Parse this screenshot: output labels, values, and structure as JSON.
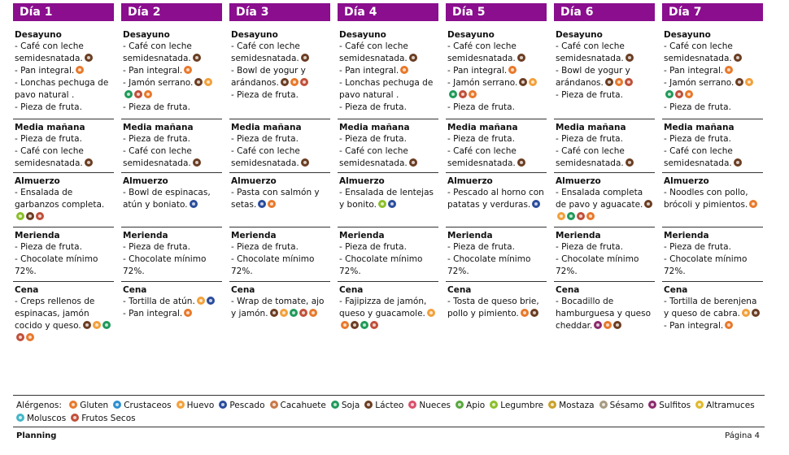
{
  "allergen_colors": {
    "gluten": "#e8792b",
    "crustaceos": "#2c8fd0",
    "huevo": "#f2a03b",
    "pescado": "#2a4c9b",
    "cacahuete": "#c8784a",
    "soja": "#1f9a5a",
    "lacteo": "#6b3d22",
    "nueces": "#d9506b",
    "apio": "#58a83d",
    "legumbre": "#8cbf2a",
    "mostaza": "#c9a02a",
    "sesamo": "#a69a80",
    "sulfitos": "#8c2a6d",
    "altramuces": "#e0b92c",
    "moluscos": "#43b6c8",
    "frutos_secos": "#c0503a"
  },
  "days": [
    {
      "label": "Día 1",
      "meals": [
        {
          "title": "Desayuno",
          "items": [
            {
              "text": "- Café con leche semidesnatada.",
              "allergens": [
                "lacteo"
              ]
            },
            {
              "text": "- Pan integral.",
              "allergens": [
                "gluten"
              ]
            },
            {
              "text": "- Lonchas pechuga de pavo natural .",
              "allergens": []
            },
            {
              "text": "- Pieza de fruta.",
              "allergens": []
            }
          ]
        },
        {
          "title": "Media mañana",
          "items": [
            {
              "text": "- Pieza de fruta.",
              "allergens": []
            },
            {
              "text": "- Café con leche semidesnatada.",
              "allergens": [
                "lacteo"
              ]
            }
          ]
        },
        {
          "title": "Almuerzo",
          "items": [
            {
              "text": "- Ensalada de garbanzos completa.",
              "allergens": [
                "legumbre",
                "lacteo",
                "frutos_secos"
              ]
            }
          ]
        },
        {
          "title": "Merienda",
          "items": [
            {
              "text": "- Pieza de fruta.",
              "allergens": []
            },
            {
              "text": "- Chocolate mínimo 72%.",
              "allergens": []
            }
          ]
        },
        {
          "title": "Cena",
          "items": [
            {
              "text": "- Creps rellenos de espinacas, jamón cocido y queso.",
              "allergens": [
                "lacteo",
                "huevo",
                "soja",
                "frutos_secos",
                "gluten"
              ]
            }
          ]
        }
      ]
    },
    {
      "label": "Día 2",
      "meals": [
        {
          "title": "Desayuno",
          "items": [
            {
              "text": "- Café con leche semidesnatada.",
              "allergens": [
                "lacteo"
              ]
            },
            {
              "text": "- Pan integral.",
              "allergens": [
                "gluten"
              ]
            },
            {
              "text": "- Jamón serrano.",
              "allergens": [
                "lacteo",
                "huevo",
                "soja",
                "frutos_secos",
                "gluten"
              ]
            },
            {
              "text": "- Pieza de fruta.",
              "allergens": []
            }
          ]
        },
        {
          "title": "Media mañana",
          "items": [
            {
              "text": "- Pieza de fruta.",
              "allergens": []
            },
            {
              "text": "- Café con leche semidesnatada.",
              "allergens": [
                "lacteo"
              ]
            }
          ]
        },
        {
          "title": "Almuerzo",
          "items": [
            {
              "text": "- Bowl de espinacas, atún y boniato.",
              "allergens": [
                "pescado"
              ]
            }
          ]
        },
        {
          "title": "Merienda",
          "items": [
            {
              "text": "- Pieza de fruta.",
              "allergens": []
            },
            {
              "text": "- Chocolate mínimo 72%.",
              "allergens": []
            }
          ]
        },
        {
          "title": "Cena",
          "items": [
            {
              "text": "- Tortilla de atún.",
              "allergens": [
                "huevo",
                "pescado"
              ]
            },
            {
              "text": "- Pan integral.",
              "allergens": [
                "gluten"
              ]
            }
          ]
        }
      ]
    },
    {
      "label": "Día 3",
      "meals": [
        {
          "title": "Desayuno",
          "items": [
            {
              "text": "- Café con leche semidesnatada.",
              "allergens": [
                "lacteo"
              ]
            },
            {
              "text": "- Bowl de yogur y arándanos.",
              "allergens": [
                "lacteo",
                "gluten",
                "frutos_secos"
              ]
            },
            {
              "text": "- Pieza de fruta.",
              "allergens": []
            }
          ]
        },
        {
          "title": "Media mañana",
          "items": [
            {
              "text": "- Pieza de fruta.",
              "allergens": []
            },
            {
              "text": "- Café con leche semidesnatada.",
              "allergens": [
                "lacteo"
              ]
            }
          ]
        },
        {
          "title": "Almuerzo",
          "items": [
            {
              "text": "- Pasta con salmón y setas.",
              "allergens": [
                "pescado",
                "gluten"
              ]
            }
          ]
        },
        {
          "title": "Merienda",
          "items": [
            {
              "text": "- Pieza de fruta.",
              "allergens": []
            },
            {
              "text": "- Chocolate mínimo 72%.",
              "allergens": []
            }
          ]
        },
        {
          "title": "Cena",
          "items": [
            {
              "text": "- Wrap de tomate, ajo y jamón.",
              "allergens": [
                "lacteo",
                "huevo",
                "soja",
                "frutos_secos",
                "gluten"
              ]
            }
          ]
        }
      ]
    },
    {
      "label": "Día 4",
      "meals": [
        {
          "title": "Desayuno",
          "items": [
            {
              "text": "- Café con leche semidesnatada.",
              "allergens": [
                "lacteo"
              ]
            },
            {
              "text": "- Pan integral.",
              "allergens": [
                "gluten"
              ]
            },
            {
              "text": "- Lonchas pechuga de pavo natural .",
              "allergens": []
            },
            {
              "text": "- Pieza de fruta.",
              "allergens": []
            }
          ]
        },
        {
          "title": "Media mañana",
          "items": [
            {
              "text": "- Pieza de fruta.",
              "allergens": []
            },
            {
              "text": "- Café con leche semidesnatada.",
              "allergens": [
                "lacteo"
              ]
            }
          ]
        },
        {
          "title": "Almuerzo",
          "items": [
            {
              "text": "- Ensalada de lentejas y bonito.",
              "allergens": [
                "legumbre",
                "pescado"
              ]
            }
          ]
        },
        {
          "title": "Merienda",
          "items": [
            {
              "text": "- Pieza de fruta.",
              "allergens": []
            },
            {
              "text": "- Chocolate mínimo 72%.",
              "allergens": []
            }
          ]
        },
        {
          "title": "Cena",
          "items": [
            {
              "text": "- Fajipizza de jamón, queso y guacamole.",
              "allergens": [
                "huevo",
                "gluten",
                "lacteo",
                "soja",
                "frutos_secos"
              ]
            }
          ]
        }
      ]
    },
    {
      "label": "Día 5",
      "meals": [
        {
          "title": "Desayuno",
          "items": [
            {
              "text": "- Café con leche semidesnatada.",
              "allergens": [
                "lacteo"
              ]
            },
            {
              "text": "- Pan integral.",
              "allergens": [
                "gluten"
              ]
            },
            {
              "text": "- Jamón serrano.",
              "allergens": [
                "lacteo",
                "huevo",
                "soja",
                "frutos_secos",
                "gluten"
              ]
            },
            {
              "text": "- Pieza de fruta.",
              "allergens": []
            }
          ]
        },
        {
          "title": "Media mañana",
          "items": [
            {
              "text": "- Pieza de fruta.",
              "allergens": []
            },
            {
              "text": "- Café con leche semidesnatada.",
              "allergens": [
                "lacteo"
              ]
            }
          ]
        },
        {
          "title": "Almuerzo",
          "items": [
            {
              "text": "- Pescado al horno con patatas y verduras.",
              "allergens": [
                "pescado"
              ]
            }
          ]
        },
        {
          "title": "Merienda",
          "items": [
            {
              "text": "- Pieza de fruta.",
              "allergens": []
            },
            {
              "text": "- Chocolate mínimo 72%.",
              "allergens": []
            }
          ]
        },
        {
          "title": "Cena",
          "items": [
            {
              "text": "- Tosta de queso brie, pollo y pimiento.",
              "allergens": [
                "gluten",
                "lacteo"
              ]
            }
          ]
        }
      ]
    },
    {
      "label": "Día 6",
      "meals": [
        {
          "title": "Desayuno",
          "items": [
            {
              "text": "- Café con leche semidesnatada.",
              "allergens": [
                "lacteo"
              ]
            },
            {
              "text": "- Bowl de yogur y arándanos.",
              "allergens": [
                "lacteo",
                "gluten",
                "frutos_secos"
              ]
            },
            {
              "text": "- Pieza de fruta.",
              "allergens": []
            }
          ]
        },
        {
          "title": "Media mañana",
          "items": [
            {
              "text": "- Pieza de fruta.",
              "allergens": []
            },
            {
              "text": "- Café con leche semidesnatada.",
              "allergens": [
                "lacteo"
              ]
            }
          ]
        },
        {
          "title": "Almuerzo",
          "items": [
            {
              "text": "- Ensalada completa de pavo y aguacate.",
              "allergens": [
                "lacteo",
                "huevo",
                "soja",
                "frutos_secos",
                "gluten"
              ]
            }
          ]
        },
        {
          "title": "Merienda",
          "items": [
            {
              "text": "- Pieza de fruta.",
              "allergens": []
            },
            {
              "text": "- Chocolate mínimo 72%.",
              "allergens": []
            }
          ]
        },
        {
          "title": "Cena",
          "items": [
            {
              "text": "- Bocadillo de hamburguesa y queso cheddar.",
              "allergens": [
                "sulfitos",
                "gluten",
                "lacteo"
              ]
            }
          ]
        }
      ]
    },
    {
      "label": "Día 7",
      "meals": [
        {
          "title": "Desayuno",
          "items": [
            {
              "text": "- Café con leche semidesnatada.",
              "allergens": [
                "lacteo"
              ]
            },
            {
              "text": "- Pan integral.",
              "allergens": [
                "gluten"
              ]
            },
            {
              "text": "- Jamón serrano.",
              "allergens": [
                "lacteo",
                "huevo",
                "soja",
                "frutos_secos",
                "gluten"
              ]
            },
            {
              "text": "- Pieza de fruta.",
              "allergens": []
            }
          ]
        },
        {
          "title": "Media mañana",
          "items": [
            {
              "text": "- Pieza de fruta.",
              "allergens": []
            },
            {
              "text": "- Café con leche semidesnatada.",
              "allergens": [
                "lacteo"
              ]
            }
          ]
        },
        {
          "title": "Almuerzo",
          "items": [
            {
              "text": "- Noodles con pollo, brócoli y pimientos.",
              "allergens": [
                "gluten"
              ]
            }
          ]
        },
        {
          "title": "Merienda",
          "items": [
            {
              "text": "- Pieza de fruta.",
              "allergens": []
            },
            {
              "text": "- Chocolate mínimo 72%.",
              "allergens": []
            }
          ]
        },
        {
          "title": "Cena",
          "items": [
            {
              "text": "- Tortilla de berenjena y queso de cabra.",
              "allergens": [
                "huevo",
                "lacteo"
              ]
            },
            {
              "text": "- Pan integral.",
              "allergens": [
                "gluten"
              ]
            }
          ]
        }
      ]
    }
  ],
  "legend": {
    "title": "Alérgenos:",
    "items": [
      {
        "key": "gluten",
        "label": "Gluten"
      },
      {
        "key": "crustaceos",
        "label": "Crustaceos"
      },
      {
        "key": "huevo",
        "label": "Huevo"
      },
      {
        "key": "pescado",
        "label": "Pescado"
      },
      {
        "key": "cacahuete",
        "label": "Cacahuete"
      },
      {
        "key": "soja",
        "label": "Soja"
      },
      {
        "key": "lacteo",
        "label": "Lácteo"
      },
      {
        "key": "nueces",
        "label": "Nueces"
      },
      {
        "key": "apio",
        "label": "Apio"
      },
      {
        "key": "legumbre",
        "label": "Legumbre"
      },
      {
        "key": "mostaza",
        "label": "Mostaza"
      },
      {
        "key": "sesamo",
        "label": "Sésamo"
      },
      {
        "key": "sulfitos",
        "label": "Sulfitos"
      },
      {
        "key": "altramuces",
        "label": "Altramuces"
      },
      {
        "key": "moluscos",
        "label": "Moluscos"
      },
      {
        "key": "frutos_secos",
        "label": "Frutos Secos"
      }
    ]
  },
  "footer": {
    "left": "Planning",
    "right": "Página 4"
  }
}
